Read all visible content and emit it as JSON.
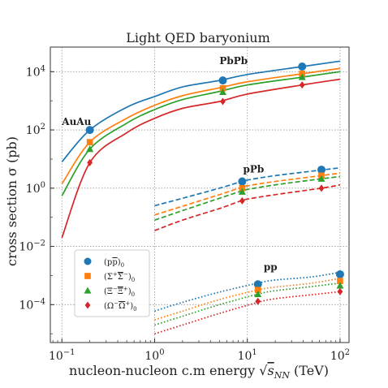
{
  "chart_data": {
    "type": "line",
    "title": "Light QED baryonium",
    "ylabel": "cross section σ (pb)",
    "xlabel": "nucleon-nucleon c.m energy √s_NN (TeV)",
    "xlabel_parts": {
      "before": "nucleon-nucleon c.m energy ",
      "var": "s",
      "sub": "NN",
      "after": " (TeV)"
    },
    "xscale": "log",
    "yscale": "log",
    "xlim": [
      0.075,
      125
    ],
    "ylim": [
      5e-06,
      70000
    ],
    "grid": true,
    "legend_position": "lower-left",
    "x_ticks": [
      {
        "value": 0.1,
        "label": "10",
        "exp": "−1"
      },
      {
        "value": 1,
        "label": "10",
        "exp": "0"
      },
      {
        "value": 10,
        "label": "10",
        "exp": "1"
      },
      {
        "value": 100,
        "label": "10",
        "exp": "2"
      }
    ],
    "y_ticks": [
      {
        "value": 0.0001,
        "label": "10",
        "exp": "−4"
      },
      {
        "value": 0.01,
        "label": "10",
        "exp": "−2"
      },
      {
        "value": 1,
        "label": "10",
        "exp": "0"
      },
      {
        "value": 100,
        "label": "10",
        "exp": "2"
      },
      {
        "value": 10000,
        "label": "10",
        "exp": "4"
      }
    ],
    "annotations": [
      {
        "text": "PbPb",
        "x": 5.0,
        "y": 18000
      },
      {
        "text": "AuAu",
        "x": 0.1,
        "y": 150
      },
      {
        "text": "pPb",
        "x": 9.0,
        "y": 3.5
      },
      {
        "text": "pp",
        "x": 15.0,
        "y": 0.0015
      }
    ],
    "series": [
      {
        "name": "(pp̄)₀",
        "legend": {
          "base": "(p",
          "bar": "p",
          "close": ")",
          "sub": "0"
        },
        "color": "#1f77b4",
        "marker": "circle",
        "curves": [
          {
            "system": "AuAu/PbPb",
            "style": "solid",
            "x": [
              0.1,
              0.2,
              0.5,
              1,
              2,
              5.02,
              10,
              39,
              100
            ],
            "y": [
              8,
              100,
              600,
              1400,
              3000,
              5000,
              8000,
              15000,
              23000
            ]
          },
          {
            "system": "pPb",
            "style": "dashed",
            "x": [
              1,
              2,
              5,
              8.16,
              10,
              20,
              63,
              100
            ],
            "y": [
              0.25,
              0.45,
              1.0,
              1.6,
              1.9,
              2.7,
              4.2,
              5.0
            ]
          },
          {
            "system": "pp",
            "style": "dotted",
            "x": [
              1,
              2,
              5,
              13,
              20,
              50,
              100
            ],
            "y": [
              6e-05,
              0.00012,
              0.00027,
              0.00055,
              0.0007,
              0.0009,
              0.0013
            ]
          }
        ],
        "points": [
          {
            "x": 0.2,
            "y": 100
          },
          {
            "x": 5.44,
            "y": 5000
          },
          {
            "x": 39,
            "y": 15000
          },
          {
            "x": 8.8,
            "y": 1.7
          },
          {
            "x": 63,
            "y": 4.3
          },
          {
            "x": 13,
            "y": 0.0005
          },
          {
            "x": 100,
            "y": 0.0011
          }
        ]
      },
      {
        "name": "(Σ⁺Σ̄⁻)₀",
        "legend": {
          "base": "(Σ",
          "sup1": "+",
          "bar": "Σ",
          "sup2": "−",
          "close": ")",
          "sub": "0"
        },
        "color": "#ff7f0e",
        "marker": "square",
        "curves": [
          {
            "system": "AuAu/PbPb",
            "style": "solid",
            "x": [
              0.1,
              0.2,
              0.5,
              1,
              2,
              5.02,
              10,
              39,
              100
            ],
            "y": [
              1.4,
              38,
              250,
              700,
              1500,
              2800,
              4500,
              8500,
              13000
            ]
          },
          {
            "system": "pPb",
            "style": "dashed",
            "x": [
              1,
              2,
              5,
              8.16,
              10,
              20,
              63,
              100
            ],
            "y": [
              0.12,
              0.24,
              0.6,
              1.0,
              1.2,
              1.7,
              2.7,
              3.3
            ]
          },
          {
            "system": "pp",
            "style": "dotted",
            "x": [
              1,
              2,
              5,
              13,
              20,
              50,
              100
            ],
            "y": [
              3e-05,
              6e-05,
              0.00015,
              0.00032,
              0.0004,
              0.00055,
              0.0008
            ]
          }
        ],
        "points": [
          {
            "x": 0.2,
            "y": 38
          },
          {
            "x": 5.44,
            "y": 2700
          },
          {
            "x": 39,
            "y": 8500
          },
          {
            "x": 8.8,
            "y": 1.0
          },
          {
            "x": 63,
            "y": 2.7
          },
          {
            "x": 13,
            "y": 0.00032
          },
          {
            "x": 100,
            "y": 0.00065
          }
        ]
      },
      {
        "name": "(Ξ⁻Ξ̄⁺)₀",
        "legend": {
          "base": "(Ξ",
          "sup1": "−",
          "bar": "Ξ",
          "sup2": "+",
          "close": ")",
          "sub": "0"
        },
        "color": "#2ca02c",
        "marker": "triangle",
        "curves": [
          {
            "system": "AuAu/PbPb",
            "style": "solid",
            "x": [
              0.1,
              0.2,
              0.5,
              1,
              2,
              5.02,
              10,
              39,
              100
            ],
            "y": [
              0.55,
              22,
              170,
              500,
              1100,
              2100,
              3500,
              6500,
              10000
            ]
          },
          {
            "system": "pPb",
            "style": "dashed",
            "x": [
              1,
              2,
              5,
              8.16,
              10,
              20,
              63,
              100
            ],
            "y": [
              0.08,
              0.17,
              0.45,
              0.75,
              0.9,
              1.3,
              2.1,
              2.5
            ]
          },
          {
            "system": "pp",
            "style": "dotted",
            "x": [
              1,
              2,
              5,
              13,
              20,
              50,
              100
            ],
            "y": [
              2e-05,
              4e-05,
              0.0001,
              0.00023,
              0.0003,
              0.00042,
              0.00055
            ]
          }
        ],
        "points": [
          {
            "x": 0.2,
            "y": 22
          },
          {
            "x": 5.44,
            "y": 2000
          },
          {
            "x": 39,
            "y": 6500
          },
          {
            "x": 8.8,
            "y": 0.75
          },
          {
            "x": 63,
            "y": 2.1
          },
          {
            "x": 13,
            "y": 0.00023
          },
          {
            "x": 100,
            "y": 0.00045
          }
        ]
      },
      {
        "name": "(Ω⁻Ω̄⁺)₀",
        "legend": {
          "base": "(Ω",
          "sup1": "−",
          "bar": "Ω",
          "sup2": "+",
          "close": ")",
          "sub": "0"
        },
        "color": "#d62728",
        "marker": "diamond",
        "curves": [
          {
            "system": "AuAu/PbPb",
            "style": "solid",
            "x": [
              0.1,
              0.2,
              0.5,
              1,
              2,
              5.02,
              10,
              39,
              100
            ],
            "y": [
              0.02,
              7.5,
              80,
              250,
              550,
              950,
              1700,
              3500,
              5500
            ]
          },
          {
            "system": "pPb",
            "style": "dashed",
            "x": [
              1,
              2,
              5,
              8.16,
              10,
              20,
              63,
              100
            ],
            "y": [
              0.035,
              0.08,
              0.2,
              0.35,
              0.42,
              0.6,
              1.0,
              1.3
            ]
          },
          {
            "system": "pp",
            "style": "dotted",
            "x": [
              1,
              2,
              5,
              13,
              20,
              50,
              100
            ],
            "y": [
              1e-05,
              2e-05,
              5e-05,
              0.00012,
              0.00016,
              0.00022,
              0.00028
            ]
          }
        ],
        "points": [
          {
            "x": 0.2,
            "y": 7.5
          },
          {
            "x": 5.44,
            "y": 950
          },
          {
            "x": 39,
            "y": 3500
          },
          {
            "x": 8.8,
            "y": 0.37
          },
          {
            "x": 63,
            "y": 1.0
          },
          {
            "x": 13,
            "y": 0.00013
          },
          {
            "x": 100,
            "y": 0.00028
          }
        ]
      }
    ]
  }
}
